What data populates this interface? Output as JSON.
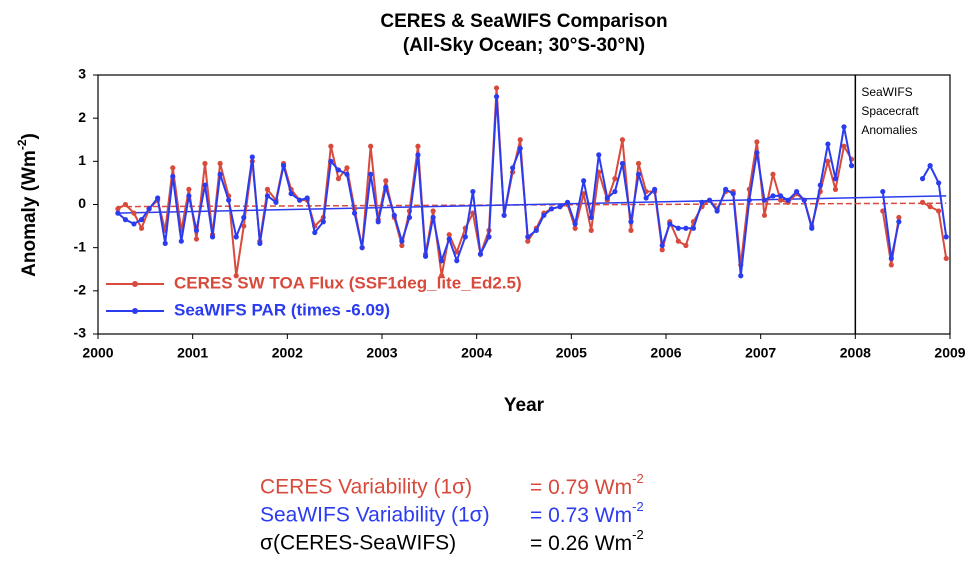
{
  "chart_data": {
    "type": "line",
    "title": "CERES & SeaWIFS Comparison",
    "subtitle": "(All-Sky Ocean; 30°S-30°N)",
    "xlabel": "Year",
    "ylabel": "Anomaly (Wm",
    "ylabel_sup": "-2",
    "ylabel_end": ")",
    "xlim": [
      2000,
      2009
    ],
    "ylim": [
      -3,
      3
    ],
    "xticks": [
      2000,
      2001,
      2002,
      2003,
      2004,
      2005,
      2006,
      2007,
      2008,
      2009
    ],
    "yticks": [
      -3,
      -2,
      -1,
      0,
      1,
      2,
      3
    ],
    "legend": "lower left",
    "x": [
      2000.21,
      2000.29,
      2000.38,
      2000.46,
      2000.54,
      2000.63,
      2000.71,
      2000.79,
      2000.88,
      2000.96,
      2001.04,
      2001.13,
      2001.21,
      2001.29,
      2001.38,
      2001.46,
      2001.54,
      2001.63,
      2001.71,
      2001.79,
      2001.88,
      2001.96,
      2002.04,
      2002.13,
      2002.21,
      2002.29,
      2002.38,
      2002.46,
      2002.54,
      2002.63,
      2002.71,
      2002.79,
      2002.88,
      2002.96,
      2003.04,
      2003.13,
      2003.21,
      2003.29,
      2003.38,
      2003.46,
      2003.54,
      2003.63,
      2003.71,
      2003.79,
      2003.88,
      2003.96,
      2004.04,
      2004.13,
      2004.21,
      2004.29,
      2004.38,
      2004.46,
      2004.54,
      2004.63,
      2004.71,
      2004.79,
      2004.88,
      2004.96,
      2005.04,
      2005.13,
      2005.21,
      2005.29,
      2005.38,
      2005.46,
      2005.54,
      2005.63,
      2005.71,
      2005.79,
      2005.88,
      2005.96,
      2006.04,
      2006.13,
      2006.21,
      2006.29,
      2006.38,
      2006.46,
      2006.54,
      2006.63,
      2006.71,
      2006.79,
      2006.88,
      2006.96,
      2007.04,
      2007.13,
      2007.21,
      2007.29,
      2007.38,
      2007.46,
      2007.54,
      2007.63,
      2007.71,
      2007.79,
      2007.88,
      2007.96,
      2008.04,
      2008.13,
      2008.21,
      2008.29,
      2008.38,
      2008.46,
      2008.54,
      2008.63,
      2008.71,
      2008.79,
      2008.88,
      2008.96
    ],
    "series": [
      {
        "name": "CERES SW TOA Flux (SSF1deg_lite_Ed2.5)",
        "color": "#d84a3c",
        "values": [
          -0.1,
          0,
          -0.2,
          -0.55,
          -0.1,
          0.1,
          -0.6,
          0.85,
          -0.6,
          0.35,
          -0.8,
          0.95,
          -0.7,
          0.95,
          0.2,
          -1.65,
          -0.5,
          1.0,
          -0.85,
          0.35,
          0.1,
          0.95,
          0.35,
          0.1,
          0.1,
          -0.5,
          -0.3,
          1.35,
          0.6,
          0.85,
          -0.1,
          -1.0,
          1.35,
          -0.35,
          0.55,
          -0.3,
          -0.95,
          -0.15,
          1.35,
          -1.15,
          -0.15,
          -1.65,
          -0.7,
          -1.1,
          -0.55,
          -0.2,
          -1.15,
          -0.6,
          2.7,
          -0.25,
          0.75,
          1.5,
          -0.85,
          -0.55,
          -0.2,
          -0.1,
          -0.05,
          0,
          -0.55,
          0.25,
          -0.6,
          0.75,
          0.1,
          0.6,
          1.5,
          -0.6,
          0.95,
          0.3,
          0.3,
          -1.05,
          -0.4,
          -0.85,
          -0.95,
          -0.4,
          -0.05,
          0.1,
          -0.1,
          0.3,
          0.3,
          -1.4,
          0.35,
          1.45,
          -0.25,
          0.7,
          0.1,
          0.05,
          0.25,
          0.1,
          -0.5,
          0.3,
          1.0,
          0.35,
          1.35,
          1.05,
          null,
          null,
          null,
          -0.15,
          -1.4,
          -0.3,
          null,
          null,
          0.05,
          -0.05,
          -0.15,
          -1.25
        ]
      },
      {
        "name": "SeaWIFS PAR (times -6.09)",
        "color": "#2b3cf0",
        "values": [
          -0.2,
          -0.35,
          -0.45,
          -0.35,
          -0.1,
          0.15,
          -0.9,
          0.65,
          -0.85,
          0.2,
          -0.6,
          0.45,
          -0.75,
          0.7,
          0.1,
          -0.75,
          -0.3,
          1.1,
          -0.9,
          0.2,
          0.05,
          0.9,
          0.25,
          0.1,
          0.15,
          -0.65,
          -0.4,
          1.0,
          0.8,
          0.7,
          -0.2,
          -1.0,
          0.7,
          -0.4,
          0.4,
          -0.25,
          -0.85,
          -0.3,
          1.15,
          -1.2,
          -0.3,
          -1.3,
          -0.8,
          -1.3,
          -0.75,
          0.3,
          -1.15,
          -0.75,
          2.5,
          -0.25,
          0.85,
          1.3,
          -0.75,
          -0.6,
          -0.25,
          -0.1,
          -0.05,
          0.05,
          -0.45,
          0.55,
          -0.3,
          1.15,
          0.15,
          0.3,
          0.95,
          -0.4,
          0.7,
          0.15,
          0.35,
          -0.95,
          -0.45,
          -0.55,
          -0.55,
          -0.55,
          0.05,
          0.1,
          -0.15,
          0.35,
          0.25,
          -1.65,
          0.1,
          1.2,
          0.1,
          0.2,
          0.2,
          0.1,
          0.3,
          0.1,
          -0.55,
          0.45,
          1.4,
          0.6,
          1.8,
          0.9,
          null,
          null,
          null,
          0.3,
          -1.25,
          -0.4,
          null,
          null,
          0.6,
          0.9,
          0.5,
          -0.75
        ]
      }
    ],
    "trend_lines": [
      {
        "color": "#d84a3c",
        "x": [
          2000.2,
          2008.96
        ],
        "values": [
          -0.05,
          0.03
        ]
      },
      {
        "color": "#2b3cf0",
        "x": [
          2000.2,
          2008.96
        ],
        "values": [
          -0.2,
          0.2
        ]
      }
    ],
    "vline": 2008,
    "annotation": [
      "SeaWIFS",
      "Spacecraft",
      "Anomalies"
    ],
    "stats": [
      {
        "label": "CERES Variability (1σ)",
        "value": "= 0.79 Wm",
        "sup": "-2",
        "color": "#d84a3c"
      },
      {
        "label": "SeaWIFS Variability (1σ)",
        "value": "= 0.73 Wm",
        "sup": "-2",
        "color": "#2b3cf0"
      },
      {
        "label": "σ(CERES-SeaWIFS)",
        "value": "= 0.26 Wm",
        "sup": "-2",
        "color": "#000000"
      }
    ]
  }
}
